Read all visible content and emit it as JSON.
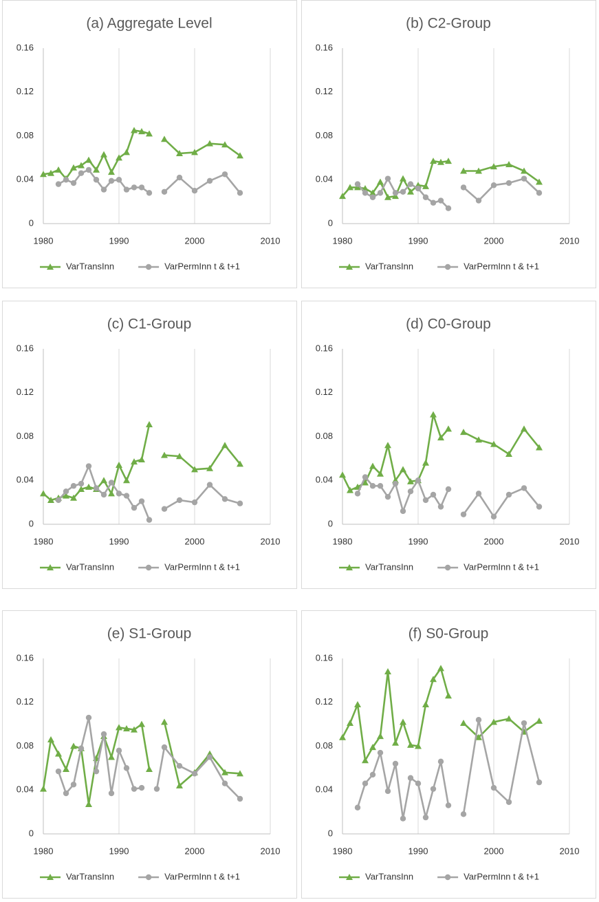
{
  "chart_data": [
    {
      "type": "line",
      "title": "(a) Aggregate Level",
      "x": [
        1980,
        1981,
        1982,
        1983,
        1984,
        1985,
        1986,
        1987,
        1988,
        1989,
        1990,
        1991,
        1992,
        1993,
        1994,
        1995,
        1996,
        1998,
        2000,
        2002,
        2004,
        2006
      ],
      "series": [
        {
          "name": "VarTransInn",
          "color": "#70ad47",
          "marker": "triangle",
          "values": [
            0.045,
            0.046,
            0.049,
            0.041,
            0.051,
            0.053,
            0.058,
            0.049,
            0.063,
            0.047,
            0.06,
            0.065,
            0.085,
            0.084,
            0.082,
            null,
            0.077,
            0.064,
            0.065,
            0.073,
            0.072,
            0.062
          ]
        },
        {
          "name": "VarPermInn t & t+1",
          "color": "#a5a5a5",
          "marker": "circle",
          "values": [
            null,
            null,
            0.036,
            0.04,
            0.037,
            0.046,
            0.049,
            0.04,
            0.031,
            0.039,
            0.04,
            0.031,
            0.033,
            0.033,
            0.028,
            null,
            0.029,
            0.042,
            0.03,
            0.039,
            0.045,
            0.028
          ]
        }
      ],
      "xlim": [
        1980,
        2010
      ],
      "xticks": [
        1980,
        1990,
        2000,
        2010
      ],
      "ylim": [
        0,
        0.16
      ],
      "yticks": [
        0,
        0.04,
        0.08,
        0.12,
        0.16
      ],
      "grid": "x",
      "legend": "bottom"
    },
    {
      "type": "line",
      "title": "(b) C2-Group",
      "x": [
        1980,
        1981,
        1982,
        1983,
        1984,
        1985,
        1986,
        1987,
        1988,
        1989,
        1990,
        1991,
        1992,
        1993,
        1994,
        1995,
        1996,
        1998,
        2000,
        2002,
        2004,
        2006
      ],
      "series": [
        {
          "name": "VarTransInn",
          "color": "#70ad47",
          "marker": "triangle",
          "values": [
            0.025,
            0.033,
            0.033,
            0.032,
            0.028,
            0.038,
            0.024,
            0.025,
            0.041,
            0.029,
            0.035,
            0.034,
            0.057,
            0.056,
            0.057,
            null,
            0.048,
            0.048,
            0.052,
            0.054,
            0.048,
            0.038
          ]
        },
        {
          "name": "VarPermInn t & t+1",
          "color": "#a5a5a5",
          "marker": "circle",
          "values": [
            null,
            null,
            0.036,
            0.028,
            0.024,
            0.028,
            0.041,
            0.028,
            0.029,
            0.036,
            0.032,
            0.024,
            0.019,
            0.021,
            0.014,
            null,
            0.033,
            0.021,
            0.035,
            0.037,
            0.041,
            0.028
          ]
        }
      ],
      "xlim": [
        1980,
        2010
      ],
      "xticks": [
        1980,
        1990,
        2000,
        2010
      ],
      "ylim": [
        0,
        0.16
      ],
      "yticks": [
        0,
        0.04,
        0.08,
        0.12,
        0.16
      ],
      "grid": "x",
      "legend": "bottom"
    },
    {
      "type": "line",
      "title": "(c) C1-Group",
      "x": [
        1980,
        1981,
        1982,
        1983,
        1984,
        1985,
        1986,
        1987,
        1988,
        1989,
        1990,
        1991,
        1992,
        1993,
        1994,
        1995,
        1996,
        1998,
        2000,
        2002,
        2004,
        2006
      ],
      "series": [
        {
          "name": "VarTransInn",
          "color": "#70ad47",
          "marker": "triangle",
          "values": [
            0.028,
            0.022,
            0.024,
            0.026,
            0.024,
            0.032,
            0.034,
            0.032,
            0.04,
            0.028,
            0.054,
            0.04,
            0.057,
            0.059,
            0.091,
            null,
            0.063,
            0.062,
            0.05,
            0.051,
            0.072,
            0.055
          ]
        },
        {
          "name": "VarPermInn t & t+1",
          "color": "#a5a5a5",
          "marker": "circle",
          "values": [
            null,
            null,
            0.022,
            0.03,
            0.035,
            0.037,
            0.053,
            0.033,
            0.027,
            0.038,
            0.028,
            0.026,
            0.015,
            0.021,
            0.004,
            null,
            0.014,
            0.022,
            0.02,
            0.036,
            0.023,
            0.019
          ]
        }
      ],
      "xlim": [
        1980,
        2010
      ],
      "xticks": [
        1980,
        1990,
        2000,
        2010
      ],
      "ylim": [
        0,
        0.16
      ],
      "yticks": [
        0,
        0.04,
        0.08,
        0.12,
        0.16
      ],
      "grid": "x",
      "legend": "bottom"
    },
    {
      "type": "line",
      "title": "(d) C0-Group",
      "x": [
        1980,
        1981,
        1982,
        1983,
        1984,
        1985,
        1986,
        1987,
        1988,
        1989,
        1990,
        1991,
        1992,
        1993,
        1994,
        1995,
        1996,
        1998,
        2000,
        2002,
        2004,
        2006
      ],
      "series": [
        {
          "name": "VarTransInn",
          "color": "#70ad47",
          "marker": "triangle",
          "values": [
            0.045,
            0.031,
            0.034,
            0.038,
            0.053,
            0.046,
            0.072,
            0.04,
            0.05,
            0.039,
            0.04,
            0.056,
            0.1,
            0.079,
            0.087,
            null,
            0.084,
            0.077,
            0.073,
            0.064,
            0.087,
            0.07
          ]
        },
        {
          "name": "VarPermInn t & t+1",
          "color": "#a5a5a5",
          "marker": "circle",
          "values": [
            null,
            null,
            0.028,
            0.043,
            0.035,
            0.035,
            0.025,
            0.037,
            0.012,
            0.03,
            0.04,
            0.022,
            0.027,
            0.016,
            0.032,
            null,
            0.009,
            0.028,
            0.007,
            0.027,
            0.033,
            0.016
          ]
        }
      ],
      "xlim": [
        1980,
        2010
      ],
      "xticks": [
        1980,
        1990,
        2000,
        2010
      ],
      "ylim": [
        0,
        0.16
      ],
      "yticks": [
        0,
        0.04,
        0.08,
        0.12,
        0.16
      ],
      "grid": "x",
      "legend": "bottom"
    },
    {
      "type": "line",
      "title": "(e) S1-Group",
      "x": [
        1980,
        1981,
        1982,
        1983,
        1984,
        1985,
        1986,
        1987,
        1988,
        1989,
        1990,
        1991,
        1992,
        1993,
        1994,
        1995,
        1996,
        1998,
        2000,
        2002,
        2004,
        2006
      ],
      "series": [
        {
          "name": "VarTransInn",
          "color": "#70ad47",
          "marker": "triangle",
          "values": [
            0.041,
            0.086,
            0.073,
            0.059,
            0.08,
            0.078,
            0.027,
            0.069,
            0.089,
            0.07,
            0.097,
            0.096,
            0.095,
            0.1,
            0.059,
            null,
            0.102,
            0.044,
            0.056,
            0.073,
            0.056,
            0.055
          ]
        },
        {
          "name": "VarPermInn t & t+1",
          "color": "#a5a5a5",
          "marker": "circle",
          "values": [
            null,
            null,
            0.057,
            0.037,
            0.045,
            0.078,
            0.106,
            0.057,
            0.091,
            0.037,
            0.076,
            0.06,
            0.041,
            0.042,
            null,
            0.041,
            0.079,
            0.062,
            0.055,
            0.07,
            0.046,
            0.032
          ]
        }
      ],
      "xlim": [
        1980,
        2010
      ],
      "xticks": [
        1980,
        1990,
        2000,
        2010
      ],
      "ylim": [
        0,
        0.16
      ],
      "yticks": [
        0,
        0.04,
        0.08,
        0.12,
        0.16
      ],
      "grid": "x",
      "legend": "bottom"
    },
    {
      "type": "line",
      "title": "(f) S0-Group",
      "x": [
        1980,
        1981,
        1982,
        1983,
        1984,
        1985,
        1986,
        1987,
        1988,
        1989,
        1990,
        1991,
        1992,
        1993,
        1994,
        1995,
        1996,
        1998,
        2000,
        2002,
        2004,
        2006
      ],
      "series": [
        {
          "name": "VarTransInn",
          "color": "#70ad47",
          "marker": "triangle",
          "values": [
            0.088,
            0.101,
            0.118,
            0.067,
            0.079,
            0.089,
            0.148,
            0.083,
            0.102,
            0.081,
            0.08,
            0.118,
            0.141,
            0.151,
            0.126,
            null,
            0.101,
            0.088,
            0.102,
            0.105,
            0.093,
            0.103
          ]
        },
        {
          "name": "VarPermInn t & t+1",
          "color": "#a5a5a5",
          "marker": "circle",
          "values": [
            null,
            null,
            0.024,
            0.046,
            0.054,
            0.074,
            0.039,
            0.064,
            0.014,
            0.051,
            0.046,
            0.015,
            0.041,
            0.066,
            0.026,
            null,
            0.018,
            0.104,
            0.042,
            0.029,
            0.101,
            0.047
          ]
        }
      ],
      "xlim": [
        1980,
        2010
      ],
      "xticks": [
        1980,
        1990,
        2000,
        2010
      ],
      "ylim": [
        0,
        0.16
      ],
      "yticks": [
        0,
        0.04,
        0.08,
        0.12,
        0.16
      ],
      "grid": "x",
      "legend": "bottom"
    }
  ]
}
